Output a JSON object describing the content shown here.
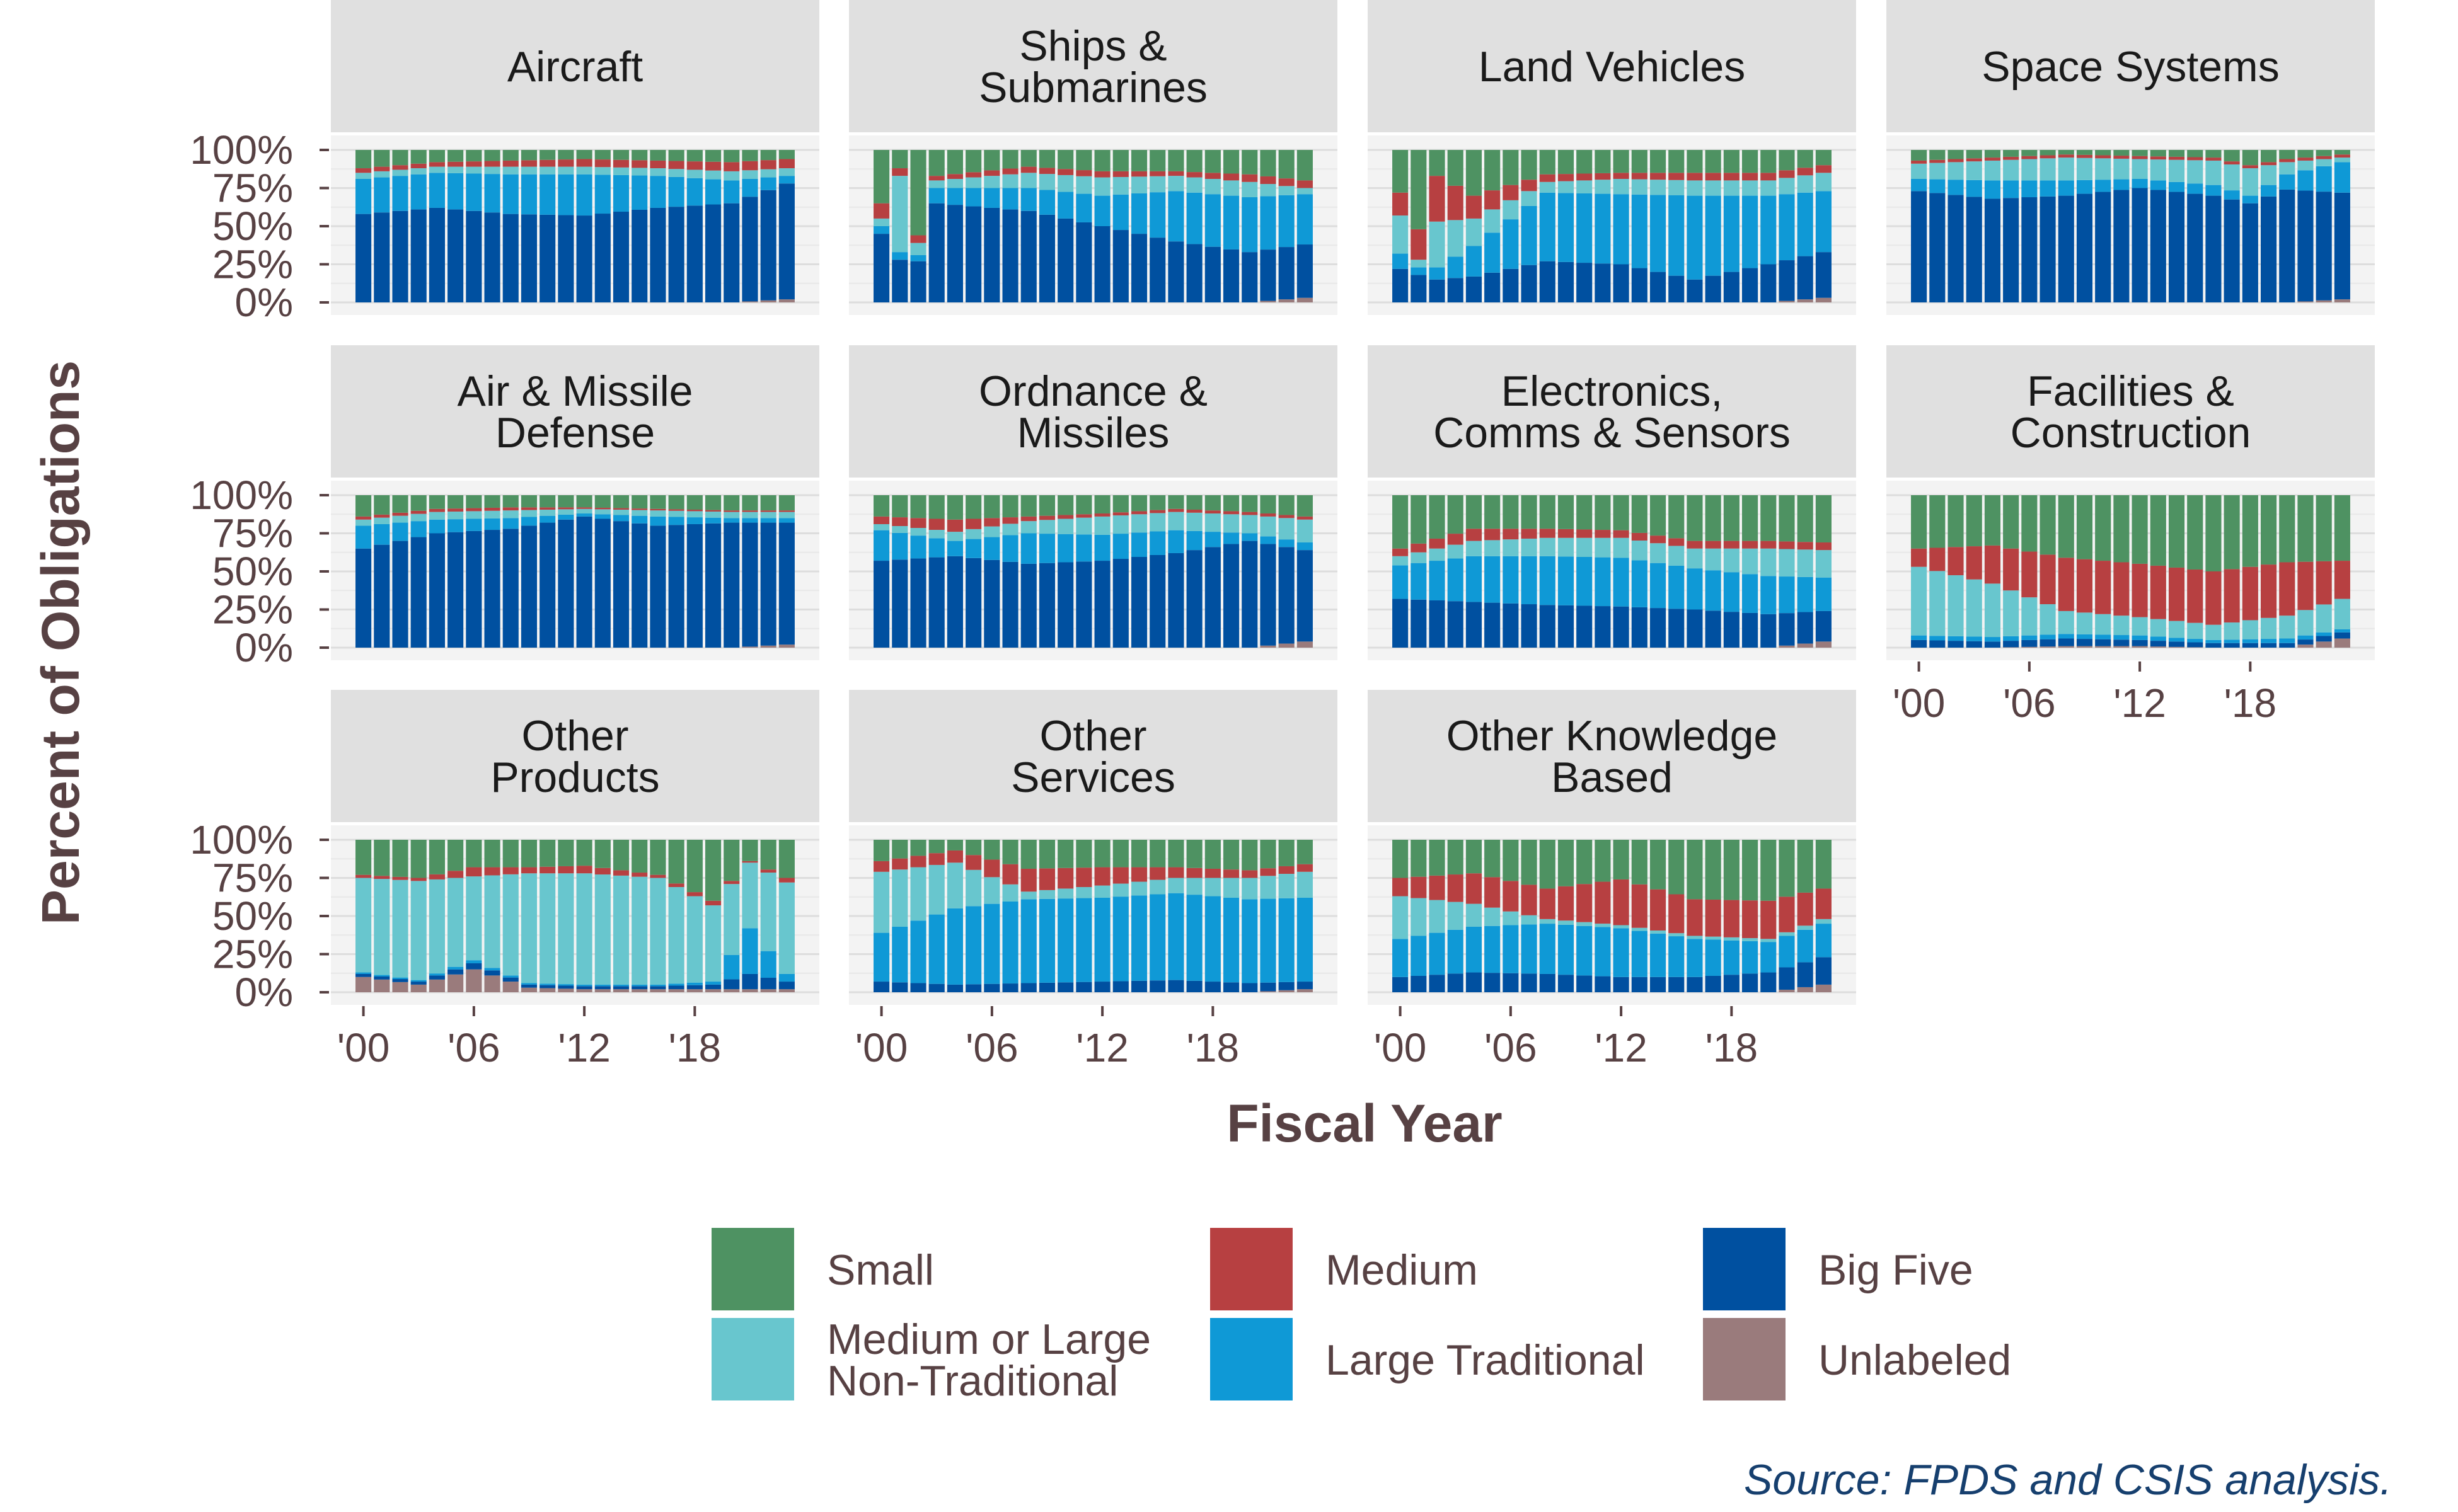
{
  "chart_data": {
    "type": "bar",
    "stacked": true,
    "normalized": true,
    "x": [
      2000,
      2001,
      2002,
      2003,
      2004,
      2005,
      2006,
      2007,
      2008,
      2009,
      2010,
      2011,
      2012,
      2013,
      2014,
      2015,
      2016,
      2017,
      2018,
      2019,
      2020,
      2021,
      2022,
      2023
    ],
    "x_tick_labels": [
      "'00",
      "'06",
      "'12",
      "'18"
    ],
    "x_tick_values": [
      2000,
      2006,
      2012,
      2018
    ],
    "xlabel": "Fiscal Year",
    "ylabel": "Percent of Obligations",
    "y_tick_labels": [
      "0%",
      "25%",
      "50%",
      "75%",
      "100%"
    ],
    "ylim": [
      0,
      1.05
    ],
    "grid": true,
    "legend_position": "bottom",
    "series_order": [
      "Unlabeled",
      "Big Five",
      "Large Traditional",
      "Medium or Large Non-Traditional",
      "Medium",
      "Small"
    ],
    "legend": [
      {
        "key": "Small",
        "label": "Small",
        "color": "#4e9262"
      },
      {
        "key": "Medium",
        "label": "Medium",
        "color": "#b74041"
      },
      {
        "key": "Big Five",
        "label": "Big Five",
        "color": "#0050a0"
      },
      {
        "key": "Medium or Large Non-Traditional",
        "label_lines": [
          "Medium or Large",
          "Non-Traditional"
        ],
        "color": "#68c6ce"
      },
      {
        "key": "Large Traditional",
        "label": "Large Traditional",
        "color": "#0f99d6"
      },
      {
        "key": "Unlabeled",
        "label": "Unlabeled",
        "color": "#9a7b7c"
      }
    ],
    "source": "Source: FPDS and CSIS analysis.",
    "panels": [
      {
        "title": [
          "Aircraft"
        ],
        "knots": [
          [
            2000,
            0,
            0.58,
            0.23,
            0.03,
            0.04
          ],
          [
            2004,
            0,
            0.62,
            0.23,
            0.03,
            0.04
          ],
          [
            2008,
            0,
            0.58,
            0.26,
            0.04,
            0.05
          ],
          [
            2012,
            0,
            0.57,
            0.27,
            0.05,
            0.05
          ],
          [
            2016,
            0,
            0.62,
            0.21,
            0.05,
            0.05
          ],
          [
            2020,
            0,
            0.65,
            0.15,
            0.06,
            0.06
          ],
          [
            2023,
            0.02,
            0.76,
            0.05,
            0.06,
            0.05
          ]
        ]
      },
      {
        "title": [
          "Ships &",
          "Submarines"
        ],
        "knots": [
          [
            2000,
            0,
            0.45,
            0.05,
            0.1,
            0.05
          ],
          [
            2001,
            0,
            0.28,
            0.05,
            0.05,
            0.5
          ],
          [
            2002,
            0,
            0.27,
            0.04,
            0.05,
            0.08
          ],
          [
            2003,
            0,
            0.65,
            0.1,
            0.03,
            0.05
          ],
          [
            2008,
            0,
            0.6,
            0.15,
            0.04,
            0.1
          ],
          [
            2012,
            0,
            0.5,
            0.2,
            0.04,
            0.12
          ],
          [
            2016,
            0,
            0.4,
            0.33,
            0.03,
            0.1
          ],
          [
            2020,
            0,
            0.33,
            0.36,
            0.05,
            0.1
          ],
          [
            2023,
            0.03,
            0.35,
            0.33,
            0.05,
            0.04
          ]
        ]
      },
      {
        "title": [
          "Land Vehicles"
        ],
        "knots": [
          [
            2000,
            0,
            0.22,
            0.1,
            0.15,
            0.25
          ],
          [
            2001,
            0,
            0.18,
            0.05,
            0.2,
            0.05
          ],
          [
            2002,
            0,
            0.15,
            0.08,
            0.3,
            0.3
          ],
          [
            2004,
            0,
            0.17,
            0.2,
            0.15,
            0.18
          ],
          [
            2008,
            0,
            0.27,
            0.45,
            0.05,
            0.07
          ],
          [
            2012,
            0,
            0.25,
            0.46,
            0.04,
            0.1
          ],
          [
            2016,
            0,
            0.15,
            0.55,
            0.05,
            0.1
          ],
          [
            2020,
            0,
            0.25,
            0.45,
            0.05,
            0.1
          ],
          [
            2023,
            0.03,
            0.3,
            0.4,
            0.05,
            0.12
          ]
        ]
      },
      {
        "title": [
          "Space Systems"
        ],
        "knots": [
          [
            2000,
            0,
            0.73,
            0.08,
            0.02,
            0.1
          ],
          [
            2004,
            0,
            0.68,
            0.12,
            0.02,
            0.13
          ],
          [
            2008,
            0,
            0.7,
            0.1,
            0.02,
            0.15
          ],
          [
            2012,
            0,
            0.75,
            0.06,
            0.02,
            0.13
          ],
          [
            2016,
            0,
            0.7,
            0.07,
            0.02,
            0.16
          ],
          [
            2018,
            0,
            0.65,
            0.05,
            0.02,
            0.18
          ],
          [
            2020,
            0,
            0.74,
            0.1,
            0.02,
            0.08
          ],
          [
            2023,
            0.02,
            0.7,
            0.2,
            0.02,
            0.03
          ]
        ]
      },
      {
        "title": [
          "Air & Missile",
          "Defense"
        ],
        "knots": [
          [
            2000,
            0,
            0.65,
            0.15,
            0.02,
            0.04
          ],
          [
            2004,
            0,
            0.75,
            0.09,
            0.02,
            0.05
          ],
          [
            2008,
            0,
            0.78,
            0.07,
            0.02,
            0.05
          ],
          [
            2012,
            0,
            0.86,
            0.02,
            0.01,
            0.03
          ],
          [
            2016,
            0,
            0.8,
            0.06,
            0.01,
            0.04
          ],
          [
            2020,
            0,
            0.82,
            0.03,
            0.01,
            0.04
          ],
          [
            2023,
            0.02,
            0.8,
            0.03,
            0.01,
            0.04
          ]
        ]
      },
      {
        "title": [
          "Ordnance &",
          "Missiles"
        ],
        "knots": [
          [
            2000,
            0,
            0.57,
            0.2,
            0.05,
            0.04
          ],
          [
            2004,
            0,
            0.6,
            0.1,
            0.08,
            0.06
          ],
          [
            2008,
            0,
            0.55,
            0.2,
            0.03,
            0.08
          ],
          [
            2012,
            0,
            0.57,
            0.17,
            0.02,
            0.12
          ],
          [
            2016,
            0,
            0.62,
            0.15,
            0.02,
            0.12
          ],
          [
            2020,
            0,
            0.7,
            0.05,
            0.02,
            0.12
          ],
          [
            2023,
            0.04,
            0.6,
            0.05,
            0.02,
            0.15
          ]
        ]
      },
      {
        "title": [
          "Electronics,",
          "Comms & Sensors"
        ],
        "knots": [
          [
            2000,
            0,
            0.32,
            0.22,
            0.05,
            0.06
          ],
          [
            2004,
            0,
            0.3,
            0.3,
            0.08,
            0.1
          ],
          [
            2008,
            0,
            0.28,
            0.32,
            0.06,
            0.12
          ],
          [
            2012,
            0,
            0.27,
            0.32,
            0.05,
            0.13
          ],
          [
            2016,
            0,
            0.25,
            0.27,
            0.05,
            0.13
          ],
          [
            2020,
            0,
            0.22,
            0.25,
            0.05,
            0.18
          ],
          [
            2023,
            0.04,
            0.2,
            0.22,
            0.05,
            0.18
          ]
        ]
      },
      {
        "title": [
          "Facilities &",
          "Construction"
        ],
        "knots": [
          [
            2000,
            0,
            0.05,
            0.03,
            0.12,
            0.45
          ],
          [
            2004,
            0,
            0.04,
            0.03,
            0.25,
            0.35
          ],
          [
            2008,
            0.01,
            0.05,
            0.03,
            0.35,
            0.15
          ],
          [
            2012,
            0.01,
            0.04,
            0.03,
            0.35,
            0.12
          ],
          [
            2016,
            0,
            0.03,
            0.02,
            0.35,
            0.1
          ],
          [
            2020,
            0,
            0.03,
            0.03,
            0.35,
            0.15
          ],
          [
            2023,
            0.06,
            0.04,
            0.02,
            0.25,
            0.2
          ]
        ]
      },
      {
        "title": [
          "Other",
          "Products"
        ],
        "knots": [
          [
            2000,
            0.1,
            0.02,
            0.01,
            0.02,
            0.62
          ],
          [
            2003,
            0.05,
            0.02,
            0.01,
            0.02,
            0.65
          ],
          [
            2006,
            0.15,
            0.04,
            0.02,
            0.06,
            0.55
          ],
          [
            2009,
            0.03,
            0.02,
            0.01,
            0.04,
            0.72
          ],
          [
            2012,
            0.02,
            0.02,
            0.01,
            0.05,
            0.73
          ],
          [
            2016,
            0.02,
            0.02,
            0.01,
            0.02,
            0.7
          ],
          [
            2019,
            0.02,
            0.03,
            0.02,
            0.03,
            0.5
          ],
          [
            2021,
            0.02,
            0.1,
            0.3,
            0.01,
            0.43
          ],
          [
            2023,
            0.02,
            0.05,
            0.05,
            0.03,
            0.6
          ]
        ]
      },
      {
        "title": [
          "Other",
          "Services"
        ],
        "knots": [
          [
            2000,
            0,
            0.07,
            0.32,
            0.07,
            0.4
          ],
          [
            2004,
            0,
            0.05,
            0.5,
            0.08,
            0.3
          ],
          [
            2008,
            0,
            0.06,
            0.55,
            0.15,
            0.05
          ],
          [
            2012,
            0,
            0.07,
            0.55,
            0.12,
            0.08
          ],
          [
            2016,
            0,
            0.08,
            0.57,
            0.07,
            0.1
          ],
          [
            2020,
            0,
            0.06,
            0.55,
            0.05,
            0.14
          ],
          [
            2023,
            0.02,
            0.05,
            0.55,
            0.05,
            0.17
          ]
        ]
      },
      {
        "title": [
          "Other Knowledge",
          "Based"
        ],
        "knots": [
          [
            2000,
            0,
            0.1,
            0.25,
            0.12,
            0.28
          ],
          [
            2004,
            0,
            0.13,
            0.3,
            0.2,
            0.15
          ],
          [
            2008,
            0,
            0.12,
            0.33,
            0.2,
            0.03
          ],
          [
            2012,
            0,
            0.1,
            0.32,
            0.3,
            0.02
          ],
          [
            2016,
            0,
            0.1,
            0.25,
            0.24,
            0.02
          ],
          [
            2020,
            0,
            0.13,
            0.2,
            0.25,
            0.02
          ],
          [
            2023,
            0.05,
            0.18,
            0.22,
            0.2,
            0.03
          ]
        ]
      }
    ]
  }
}
